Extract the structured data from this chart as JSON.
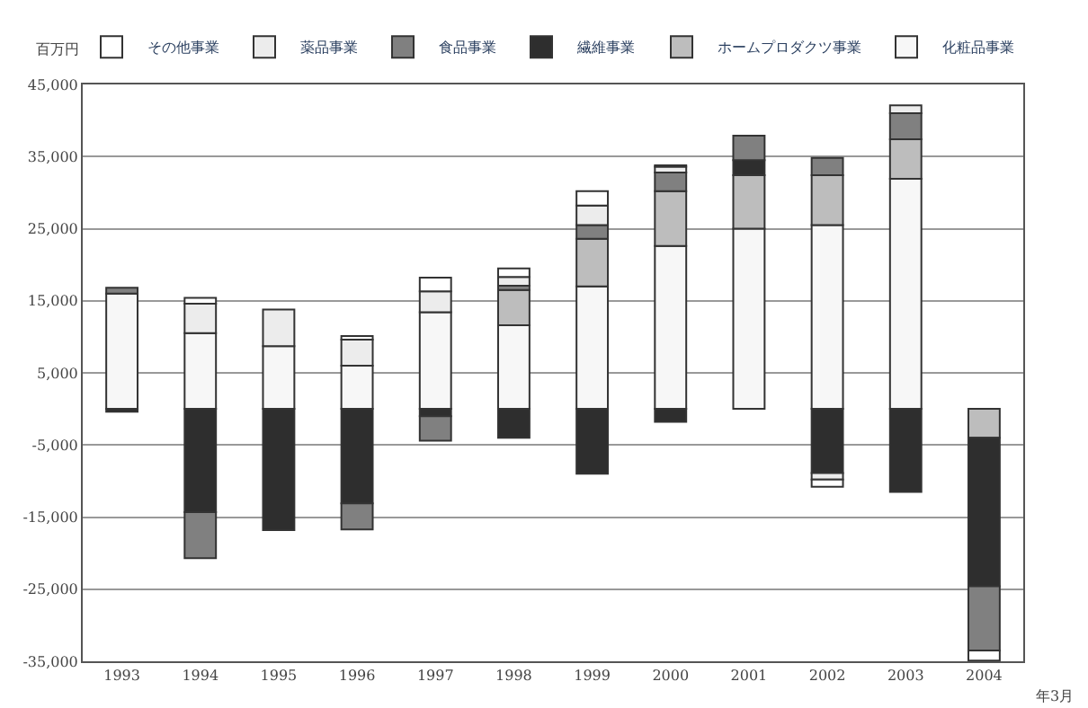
{
  "chart_data": {
    "type": "bar",
    "stacked": true,
    "categories": [
      "1993",
      "1994",
      "1995",
      "1996",
      "1997",
      "1998",
      "1999",
      "2000",
      "2001",
      "2002",
      "2003",
      "2004"
    ],
    "series": [
      {
        "name": "化粧品事業",
        "color": "#f7f7f7",
        "values": [
          16000,
          10500,
          8700,
          6000,
          13400,
          11600,
          17000,
          22600,
          25000,
          25500,
          31900,
          null
        ]
      },
      {
        "name": "ホームプロダクツ事業",
        "color": "#bdbdbd",
        "values": [
          null,
          null,
          null,
          null,
          null,
          4900,
          6600,
          7600,
          7400,
          6900,
          5500,
          -4000
        ]
      },
      {
        "name": "繊維事業",
        "color": "#2e2e2e",
        "values": [
          -400,
          -14300,
          -16800,
          -13100,
          -1000,
          -4000,
          -9000,
          -1800,
          2100,
          -8900,
          -11500,
          -20600
        ]
      },
      {
        "name": "食品事業",
        "color": "#808080",
        "values": [
          800,
          -6400,
          null,
          -3600,
          -3400,
          600,
          1900,
          2600,
          3400,
          2400,
          3600,
          -8900
        ]
      },
      {
        "name": "薬品事業",
        "color": "#ececec",
        "values": [
          null,
          4100,
          5100,
          3600,
          2900,
          1200,
          2700,
          800,
          null,
          -900,
          1100,
          null
        ]
      },
      {
        "name": "その他事業",
        "color": "#ffffff",
        "values": [
          null,
          800,
          null,
          500,
          1900,
          1200,
          2000,
          200,
          null,
          -1000,
          null,
          -1400
        ]
      }
    ],
    "ylim": [
      -35000,
      45000
    ],
    "yticks": [
      {
        "value": -35000,
        "label": "-35,000"
      },
      {
        "value": -25000,
        "label": "-25,000"
      },
      {
        "value": -15000,
        "label": "-15,000"
      },
      {
        "value": -5000,
        "label": "-5,000"
      },
      {
        "value": 5000,
        "label": "5,000"
      },
      {
        "value": 15000,
        "label": "15,000"
      },
      {
        "value": 25000,
        "label": "25,000"
      },
      {
        "value": 35000,
        "label": "35,000"
      },
      {
        "value": 45000,
        "label": "45,000"
      }
    ],
    "grid": "y",
    "legend": "top right",
    "annotations": [
      "百万円",
      "年3月"
    ]
  }
}
